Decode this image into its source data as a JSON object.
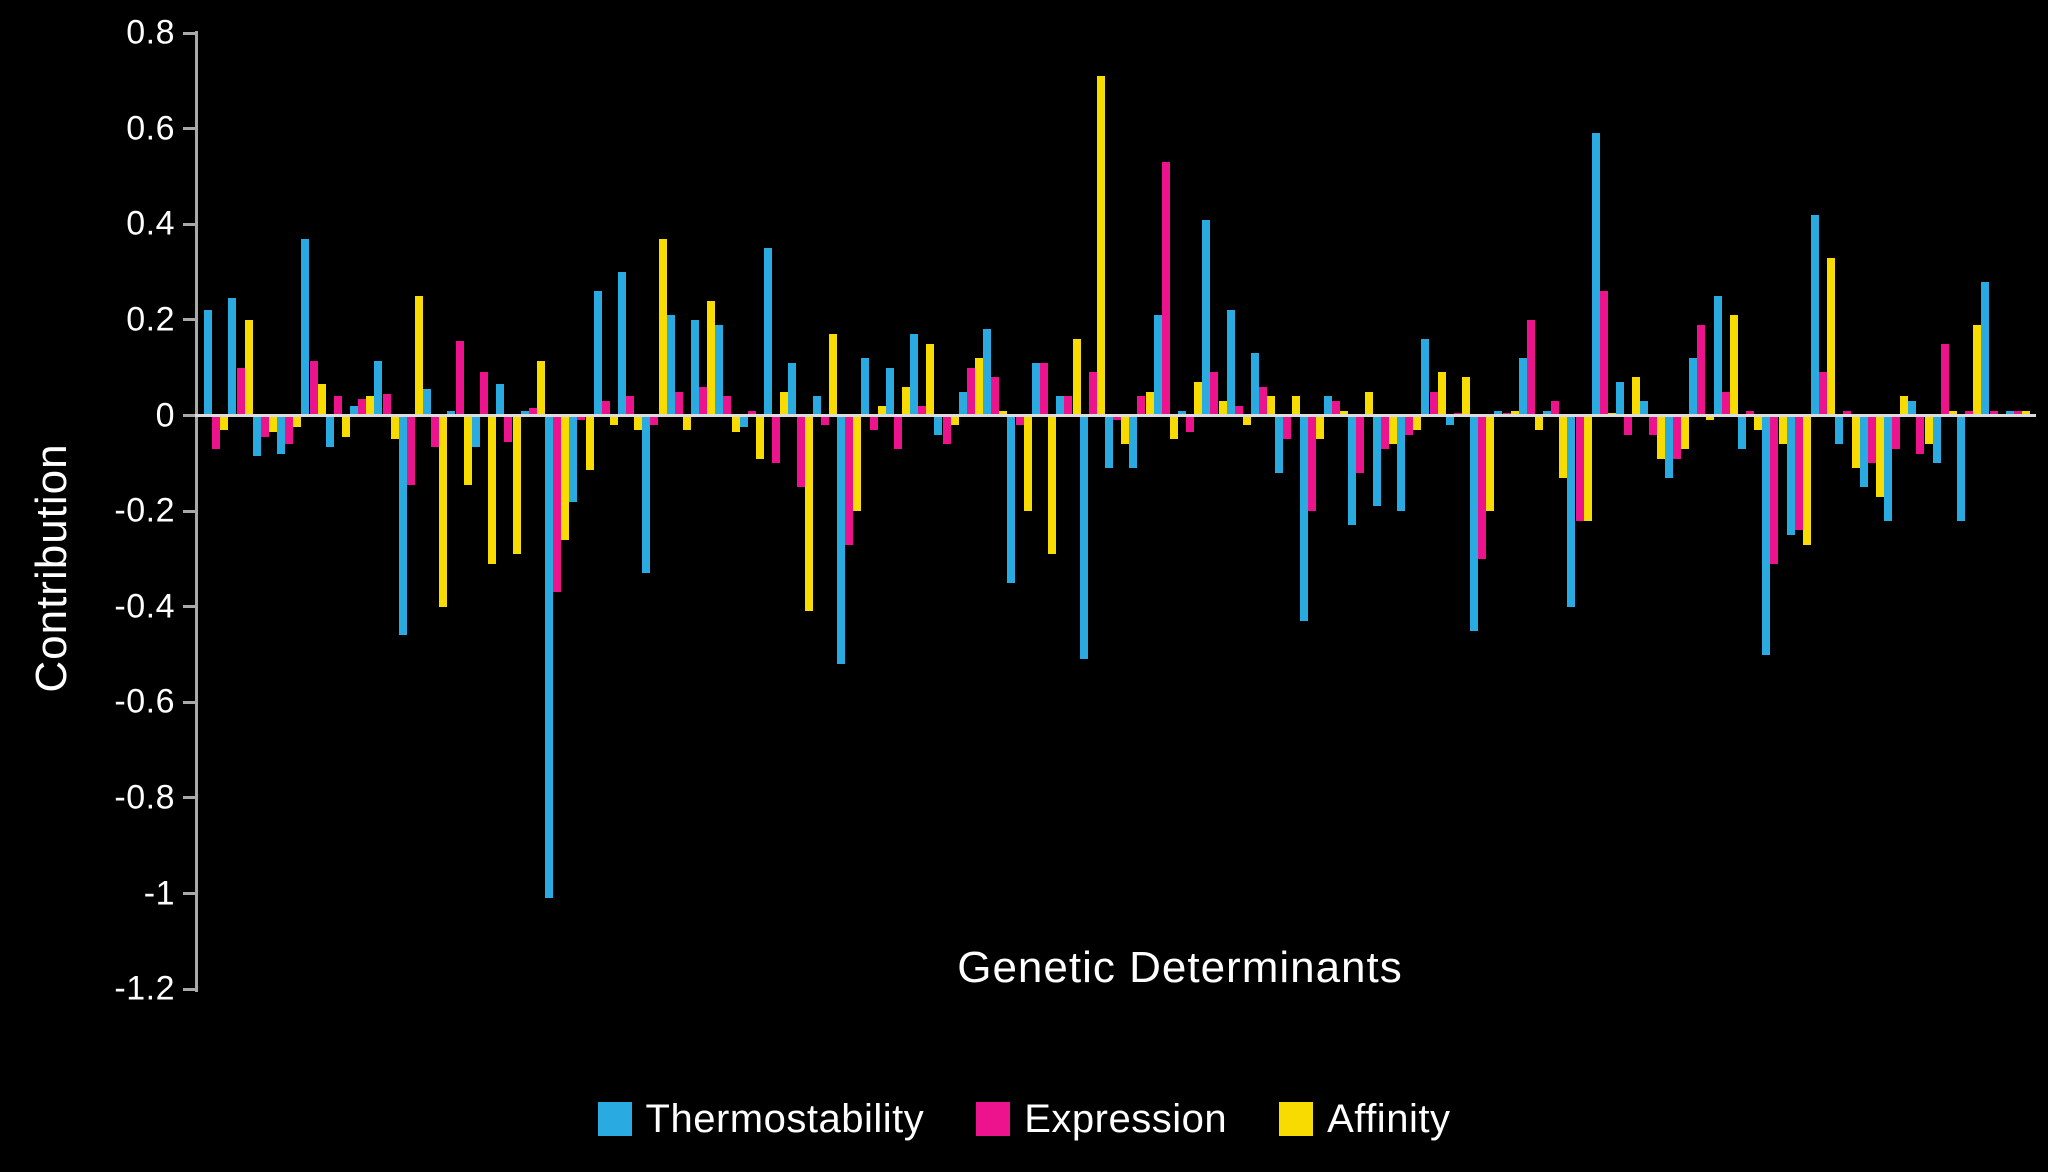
{
  "chart_data": {
    "type": "bar",
    "title": "",
    "xlabel": "Genetic Determinants",
    "ylabel": "Contribution",
    "ylim": [
      -1.2,
      0.8
    ],
    "y_tick_step": 0.2,
    "y_tick_labels": [
      "0.8",
      "0.6",
      "0.4",
      "0.2",
      "0",
      "-0.2",
      "-0.4",
      "-0.6",
      "-0.8",
      "-1",
      "-1.2"
    ],
    "x_tick_labels_shown": false,
    "grid": false,
    "legend_position": "bottom",
    "background_color": "#000000",
    "num_groups": 75,
    "series": [
      {
        "name": "Thermostability",
        "color": "#29ABE2",
        "values": [
          0.22,
          0.245,
          -0.085,
          -0.08,
          0.37,
          -0.065,
          0.02,
          0.115,
          -0.46,
          0.055,
          0.01,
          -0.065,
          0.065,
          0.01,
          -1.01,
          -0.18,
          0.26,
          0.3,
          -0.33,
          0.21,
          0.2,
          0.19,
          -0.025,
          0.35,
          0.11,
          0.04,
          -0.52,
          0.12,
          0.1,
          0.17,
          -0.04,
          0.05,
          0.18,
          -0.35,
          0.11,
          0.04,
          -0.51,
          -0.11,
          -0.11,
          0.21,
          0.01,
          0.41,
          0.22,
          0.13,
          -0.12,
          -0.43,
          0.04,
          -0.23,
          -0.19,
          -0.2,
          0.16,
          -0.02,
          -0.45,
          0.01,
          0.12,
          0.01,
          -0.4,
          0.59,
          0.07,
          0.03,
          -0.13,
          0.12,
          0.25,
          -0.07,
          -0.5,
          -0.25,
          0.42,
          -0.06,
          -0.15,
          -0.22,
          0.03,
          -0.1,
          -0.22,
          0.28,
          0.01
        ]
      },
      {
        "name": "Expression",
        "color": "#EC138C",
        "values": [
          -0.07,
          0.1,
          -0.045,
          -0.06,
          0.115,
          0.04,
          0.035,
          0.045,
          -0.145,
          -0.065,
          0.155,
          0.09,
          -0.055,
          0.015,
          -0.37,
          -0.01,
          0.03,
          0.04,
          -0.02,
          0.05,
          0.06,
          0.04,
          0.01,
          -0.1,
          -0.15,
          -0.02,
          -0.27,
          -0.03,
          -0.07,
          0.02,
          -0.06,
          0.1,
          0.08,
          -0.02,
          0.11,
          0.04,
          0.09,
          -0.01,
          0.04,
          0.53,
          -0.035,
          0.09,
          0.02,
          0.06,
          -0.05,
          -0.2,
          0.03,
          -0.12,
          -0.07,
          -0.04,
          0.05,
          0.005,
          -0.3,
          0.005,
          0.2,
          0.03,
          -0.22,
          0.26,
          -0.04,
          -0.04,
          -0.09,
          0.19,
          0.05,
          0.01,
          -0.31,
          -0.24,
          0.09,
          0.01,
          -0.1,
          -0.07,
          -0.08,
          0.15,
          0.01,
          0.01,
          0.01
        ]
      },
      {
        "name": "Affinity",
        "color": "#F8DB00",
        "values": [
          -0.03,
          0.2,
          -0.035,
          -0.025,
          0.065,
          -0.045,
          0.04,
          -0.05,
          0.25,
          -0.4,
          -0.145,
          -0.31,
          -0.29,
          0.115,
          -0.26,
          -0.115,
          -0.02,
          -0.03,
          0.37,
          -0.03,
          0.24,
          -0.035,
          -0.09,
          0.05,
          -0.41,
          0.17,
          -0.2,
          0.02,
          0.06,
          0.15,
          -0.02,
          0.12,
          0.01,
          -0.2,
          -0.29,
          0.16,
          0.71,
          -0.06,
          0.05,
          -0.05,
          0.07,
          0.03,
          -0.02,
          0.04,
          0.04,
          -0.05,
          0.01,
          0.05,
          -0.06,
          -0.03,
          0.09,
          0.08,
          -0.2,
          0.01,
          -0.03,
          -0.13,
          -0.22,
          0.005,
          0.08,
          -0.09,
          -0.07,
          -0.01,
          0.21,
          -0.03,
          -0.06,
          -0.27,
          0.33,
          -0.11,
          -0.17,
          0.04,
          -0.06,
          0.01,
          0.19,
          0.0,
          0.01
        ]
      }
    ]
  },
  "style": {
    "text_color": "#FFFFFF",
    "axis_line_color": "#A9A9A9",
    "zero_line_color": "#DCDCDC"
  }
}
